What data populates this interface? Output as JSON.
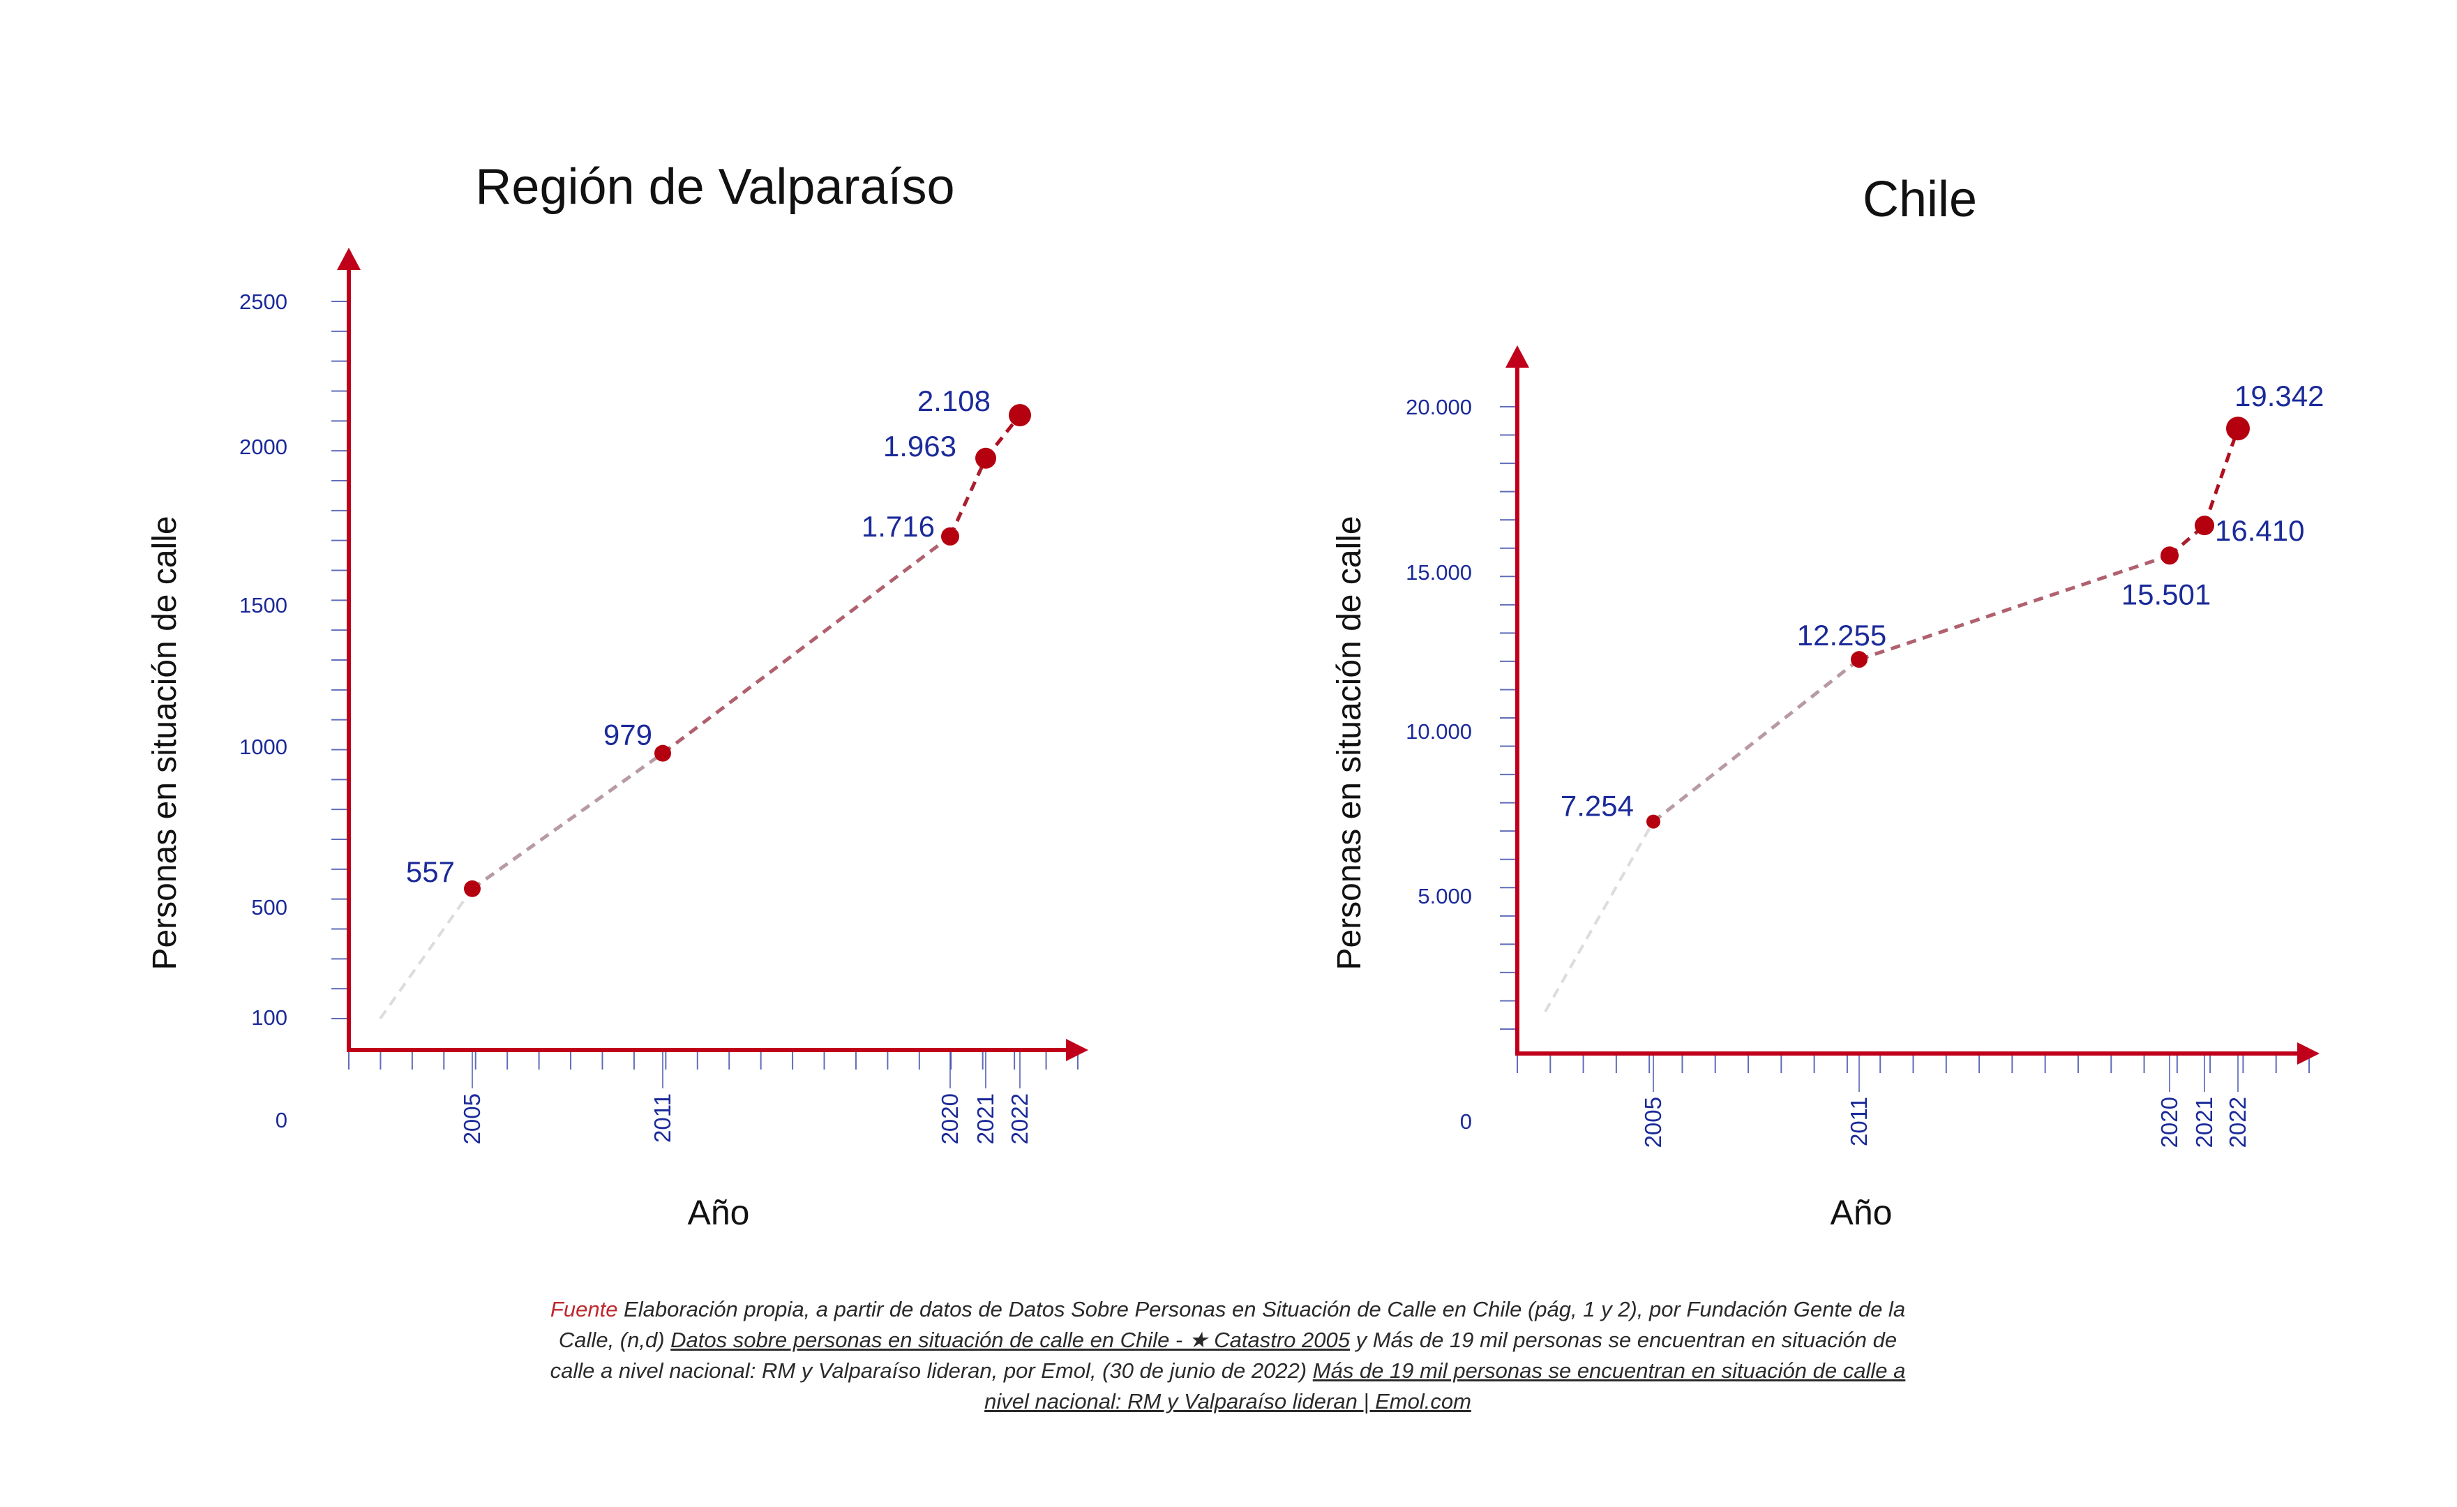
{
  "chart_data": [
    {
      "type": "line",
      "title": "Región de Valparaíso",
      "xlabel": "Año",
      "ylabel": "Personas en situación de calle",
      "y_tick_labels": [
        "0",
        "100",
        "500",
        "1000",
        "1500",
        "2000",
        "2500"
      ],
      "x_tick_labels": [
        "2005",
        "2011",
        "2020",
        "2021",
        "2022"
      ],
      "x": [
        2005,
        2011,
        2020,
        2021,
        2022
      ],
      "values": [
        557,
        979,
        1716,
        1963,
        2108
      ],
      "data_labels": [
        "557",
        "979",
        "1.716",
        "1.963",
        "2.108"
      ]
    },
    {
      "type": "line",
      "title": "Chile",
      "xlabel": "Año",
      "ylabel": "Personas en situación de calle",
      "y_tick_labels": [
        "0",
        "5.000",
        "10.000",
        "15.000",
        "20.000"
      ],
      "x_tick_labels": [
        "2005",
        "2011",
        "2020",
        "2021",
        "2022"
      ],
      "x": [
        2005,
        2011,
        2020,
        2021,
        2022
      ],
      "values": [
        7254,
        12255,
        15501,
        16410,
        19342
      ],
      "data_labels": [
        "7.254",
        "12.255",
        "15.501",
        "16.410",
        "19.342"
      ]
    }
  ],
  "colors": {
    "axis": "#c0001a",
    "tick": "#1f2f9e",
    "label": "#1b2a99",
    "point": "#b5000f"
  },
  "caption": {
    "source_label": "Fuente",
    "text_1": " Elaboración propia, a partir de datos de Datos Sobre Personas en Situación de Calle en Chile (pág, 1 y 2), por Fundación Gente de la Calle, (n,d) ",
    "link_1": "Datos sobre personas en situación de calle en Chile - ★ Catastro 2005",
    "text_2": " y Más de 19 mil personas se encuentran en situación de calle a nivel nacional: RM y Valparaíso lideran, por Emol, (30 de junio de 2022) ",
    "link_2": "Más de 19 mil personas se encuentran en situación de calle a nivel nacional: RM y Valparaíso lideran | Emol.com"
  }
}
